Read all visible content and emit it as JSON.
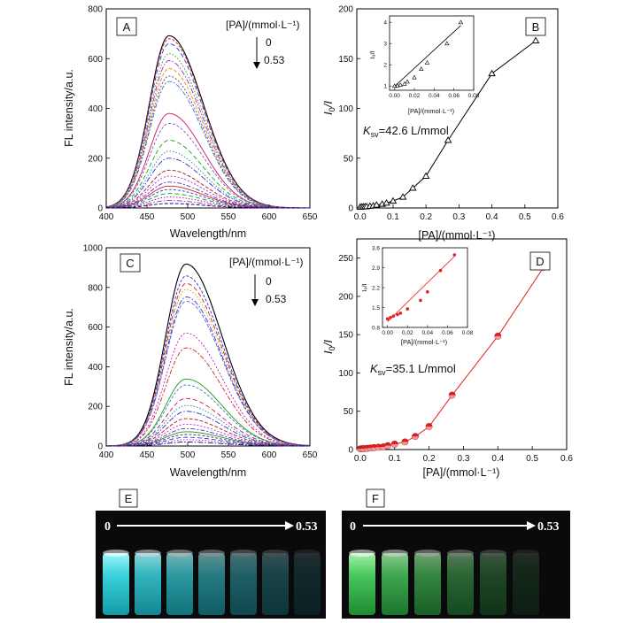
{
  "panels": {
    "A": {
      "letter": "A",
      "xlabel": "Wavelength/nm",
      "ylabel": "FL intensity/a.u.",
      "legend_title": "[PA]/(mmol·L⁻¹)",
      "legend_from": "0",
      "legend_to": "0.53",
      "xticks": [
        "400",
        "450",
        "500",
        "550",
        "600",
        "650"
      ],
      "yticks": [
        "0",
        "200",
        "400",
        "600",
        "800"
      ]
    },
    "B": {
      "letter": "B",
      "xlabel": "[PA]/(mmol·L⁻¹)",
      "ylabel_main": "I",
      "ylabel_sub": "0",
      "ylabel_tail": "/I",
      "ksv_main": "K",
      "ksv_sub": "sv",
      "ksv_text": "=42.6 L/mmol",
      "xticks": [
        "0.0",
        "0.1",
        "0.2",
        "0.3",
        "0.4",
        "0.5",
        "0.6"
      ],
      "yticks": [
        "0",
        "50",
        "100",
        "150",
        "200"
      ],
      "inset_xlabel": "[PA]/(mmol·L⁻¹)",
      "inset_ylabel": "I₀/I",
      "inset_xticks": [
        "0.00",
        "0.02",
        "0.04",
        "0.06",
        "0.08"
      ],
      "inset_yticks": [
        "1",
        "2",
        "3",
        "4"
      ]
    },
    "C": {
      "letter": "C",
      "xlabel": "Wavelength/nm",
      "ylabel": "FL intensity/a.u.",
      "legend_title": "[PA]/(mmol·L⁻¹)",
      "legend_from": "0",
      "legend_to": "0.53",
      "xticks": [
        "400",
        "450",
        "500",
        "550",
        "600",
        "650"
      ],
      "yticks": [
        "0",
        "200",
        "400",
        "600",
        "800",
        "1000"
      ]
    },
    "D": {
      "letter": "D",
      "xlabel": "[PA]/(mmol·L⁻¹)",
      "ylabel_main": "I",
      "ylabel_sub": "0",
      "ylabel_tail": "/I",
      "ksv_main": "K",
      "ksv_sub": "sv",
      "ksv_text": "=35.1 L/mmol",
      "xticks": [
        "0.0",
        "0.1",
        "0.2",
        "0.3",
        "0.4",
        "0.5",
        "0.6"
      ],
      "yticks": [
        "0",
        "50",
        "100",
        "150",
        "200",
        "250"
      ],
      "inset_xlabel": "[PA]/(mmol·L⁻¹)",
      "inset_ylabel": "I₀/I",
      "inset_xticks": [
        "0.00",
        "0.02",
        "0.04",
        "0.06",
        "0.08"
      ],
      "inset_yticks": [
        "0.8",
        "1.5",
        "2.2",
        "2.9",
        "3.6"
      ]
    },
    "E": {
      "letter": "E",
      "arrow_from": "0",
      "arrow_to": "0.53",
      "glow": "#33d6e0",
      "vials": 7
    },
    "F": {
      "letter": "F",
      "arrow_from": "0",
      "arrow_to": "0.53",
      "glow": "#3fc05a",
      "vials": 6
    }
  },
  "chart_data": [
    {
      "id": "A",
      "type": "line",
      "xlabel": "Wavelength/nm",
      "ylabel": "FL intensity/a.u.",
      "xlim": [
        400,
        650
      ],
      "ylim": [
        0,
        800
      ],
      "peak_x": 477,
      "series_peaks": [
        692,
        680,
        660,
        620,
        592,
        560,
        530,
        508,
        380,
        340,
        272,
        228,
        200,
        152,
        128,
        104,
        88,
        74,
        58,
        44,
        30,
        18
      ],
      "colors": [
        "#000000",
        "#d11e1e",
        "#1a3fd4",
        "#1a9a1a",
        "#c316c3",
        "#c9a000",
        "#7a2a7a",
        "#2a7ac9",
        "#c9165a",
        "#7a5ac9",
        "#18a018",
        "#1f7fa8",
        "#2a2ad4",
        "#a01a1a",
        "#c91ec9",
        "#5a2ad4",
        "#d11e1e",
        "#1a3fd4",
        "#1a9a1a",
        "#7a1a7a",
        "#c316c3",
        "#000080"
      ],
      "grid": false
    },
    {
      "id": "B",
      "type": "scatter",
      "xlabel": "[PA]/(mmol·L⁻¹)",
      "ylabel": "I0/I",
      "xlim": [
        -0.01,
        0.6
      ],
      "ylim": [
        0,
        200
      ],
      "x": [
        0.0,
        0.005,
        0.01,
        0.015,
        0.02,
        0.03,
        0.04,
        0.05,
        0.067,
        0.08,
        0.1,
        0.13,
        0.16,
        0.2,
        0.267,
        0.4,
        0.533
      ],
      "y": [
        1.0,
        1.1,
        1.2,
        1.3,
        1.4,
        1.8,
        2.2,
        3.0,
        3.9,
        5.0,
        7.0,
        11.0,
        20.0,
        32.0,
        68.0,
        135.0,
        168.0
      ],
      "annotation": "Ksv=42.6 L/mmol",
      "inset": {
        "xlim": [
          -0.005,
          0.08
        ],
        "ylim": [
          0.8,
          4.3
        ],
        "x": [
          0.0,
          0.003,
          0.006,
          0.01,
          0.013,
          0.02,
          0.027,
          0.033,
          0.053,
          0.067
        ],
        "y": [
          1.0,
          1.02,
          1.05,
          1.1,
          1.2,
          1.4,
          1.8,
          2.1,
          3.0,
          4.0
        ],
        "fit": [
          [
            0.0,
            0.98
          ],
          [
            0.067,
            3.85
          ]
        ]
      }
    },
    {
      "id": "C",
      "type": "line",
      "xlabel": "Wavelength/nm",
      "ylabel": "FL intensity/a.u.",
      "xlim": [
        400,
        650
      ],
      "ylim": [
        0,
        1000
      ],
      "peak_x": 498,
      "series_peaks": [
        918,
        858,
        820,
        790,
        752,
        730,
        570,
        495,
        338,
        308,
        240,
        205,
        175,
        138,
        110,
        88,
        72,
        58,
        44,
        32,
        20
      ],
      "colors": [
        "#000000",
        "#2a2ad4",
        "#d11e1e",
        "#c9a000",
        "#1a3fd4",
        "#7a5ac9",
        "#c316c3",
        "#d11e1e",
        "#1a9a1a",
        "#2a7ac9",
        "#c9165a",
        "#1f7fa8",
        "#2a2ad4",
        "#a01a1a",
        "#c91ec9",
        "#5a2ad4",
        "#1a9a1a",
        "#7a1a7a",
        "#1a3fd4",
        "#c316c3",
        "#000080"
      ],
      "grid": false
    },
    {
      "id": "D",
      "type": "scatter",
      "xlabel": "[PA]/(mmol·L⁻¹)",
      "ylabel": "I0/I",
      "xlim": [
        -0.01,
        0.6
      ],
      "ylim": [
        0,
        275
      ],
      "x": [
        0.0,
        0.005,
        0.01,
        0.02,
        0.03,
        0.04,
        0.053,
        0.067,
        0.08,
        0.1,
        0.13,
        0.16,
        0.2,
        0.267,
        0.4,
        0.533
      ],
      "y": [
        0.9,
        1.0,
        1.2,
        1.5,
        2.0,
        2.5,
        3.0,
        3.5,
        5.0,
        7.0,
        10.0,
        17.0,
        30.0,
        71.0,
        148.0,
        238.0
      ],
      "annotation": "Ksv=35.1 L/mmol",
      "inset": {
        "xlim": [
          -0.005,
          0.08
        ],
        "ylim": [
          0.8,
          3.6
        ],
        "x": [
          0.0,
          0.003,
          0.006,
          0.01,
          0.013,
          0.02,
          0.033,
          0.04,
          0.053,
          0.067
        ],
        "y": [
          1.1,
          1.15,
          1.2,
          1.25,
          1.3,
          1.45,
          1.75,
          2.05,
          2.8,
          3.35
        ],
        "fit": [
          [
            0.0,
            1.0
          ],
          [
            0.067,
            3.3
          ]
        ]
      }
    }
  ]
}
